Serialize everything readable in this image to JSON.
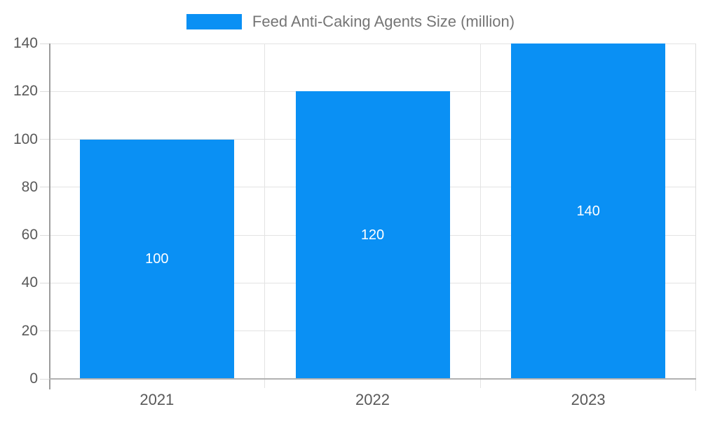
{
  "chart_data": {
    "type": "bar",
    "title": "Feed Anti-Caking Agents Size (million)",
    "categories": [
      "2021",
      "2022",
      "2023"
    ],
    "values": [
      100,
      120,
      140
    ],
    "series": [
      {
        "name": "Feed Anti-Caking Agents Size (million)",
        "values": [
          100,
          120,
          140
        ]
      }
    ],
    "data_labels": [
      "100",
      "120",
      "140"
    ],
    "xlabel": "",
    "ylabel": "",
    "ylim": [
      0,
      140
    ],
    "ytick_interval": 20,
    "yticks": [
      0,
      20,
      40,
      60,
      80,
      100,
      120,
      140
    ],
    "grid": true,
    "legend_position": "top",
    "colors": {
      "bar": "#0a90f4",
      "bar_label_text": "#ffffff",
      "axis_text": "#595959",
      "legend_text": "#757575",
      "gridline": "#e3e3e3",
      "y_axis_line": "#9c9c9c",
      "x_axis_line": "#b2b2b2",
      "background": "#ffffff"
    }
  }
}
